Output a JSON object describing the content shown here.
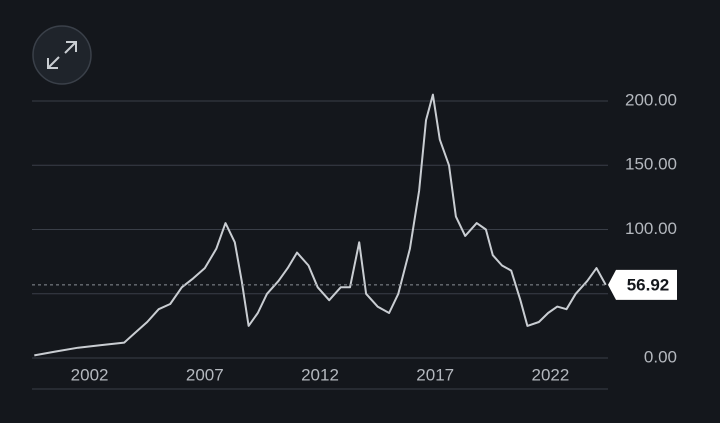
{
  "chart_data": {
    "type": "line",
    "x": [
      1999.6,
      2000.5,
      2001.5,
      2002.5,
      2003.5,
      2004.0,
      2004.5,
      2005.0,
      2005.5,
      2006.0,
      2006.5,
      2007.0,
      2007.5,
      2007.9,
      2008.3,
      2008.6,
      2008.9,
      2009.3,
      2009.7,
      2010.2,
      2010.6,
      2011.0,
      2011.5,
      2011.9,
      2012.4,
      2012.9,
      2013.3,
      2013.7,
      2014.0,
      2014.5,
      2015.0,
      2015.4,
      2015.9,
      2016.3,
      2016.6,
      2016.9,
      2017.2,
      2017.6,
      2017.9,
      2018.3,
      2018.8,
      2019.2,
      2019.5,
      2019.9,
      2020.3,
      2020.7,
      2021.0,
      2021.5,
      2021.9,
      2022.3,
      2022.7,
      2023.1,
      2023.6,
      2024.0,
      2024.4
    ],
    "values": [
      2,
      5,
      8,
      10,
      12,
      20,
      28,
      38,
      42,
      55,
      62,
      70,
      85,
      105,
      90,
      60,
      25,
      35,
      50,
      60,
      70,
      82,
      72,
      55,
      45,
      55,
      55,
      90,
      50,
      40,
      35,
      50,
      85,
      130,
      185,
      205,
      170,
      150,
      110,
      95,
      105,
      100,
      80,
      72,
      68,
      45,
      25,
      28,
      35,
      40,
      38,
      50,
      60,
      70,
      57
    ],
    "color": "#c9cdd2",
    "xlim": [
      1999.5,
      2024.5
    ],
    "xticks": [
      2002,
      2007,
      2012,
      2017,
      2022
    ],
    "ylim": [
      0,
      200
    ],
    "yticks": [
      {
        "value": 0,
        "label": "0.00"
      },
      {
        "value": 50,
        "label": "50.00"
      },
      {
        "value": 100,
        "label": "100.00"
      },
      {
        "value": 150,
        "label": "150.00"
      },
      {
        "value": 200,
        "label": "200.00"
      }
    ],
    "grid": true,
    "last_price": 56.92
  }
}
